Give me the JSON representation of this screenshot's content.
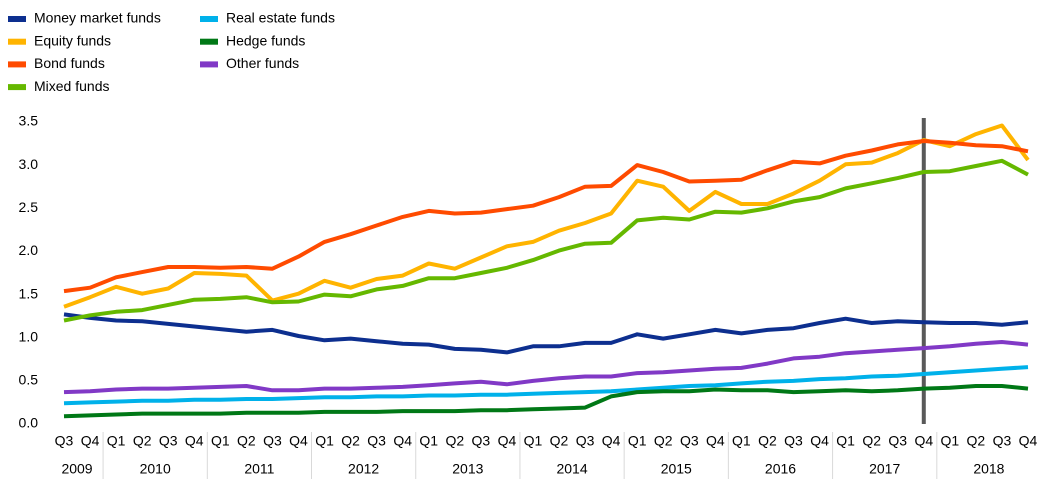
{
  "chart_data": {
    "type": "line",
    "categories": [
      "Q3",
      "Q4",
      "Q1",
      "Q2",
      "Q3",
      "Q4",
      "Q1",
      "Q2",
      "Q3",
      "Q4",
      "Q1",
      "Q2",
      "Q3",
      "Q4",
      "Q1",
      "Q2",
      "Q3",
      "Q4",
      "Q1",
      "Q2",
      "Q3",
      "Q4",
      "Q1",
      "Q2",
      "Q3",
      "Q4",
      "Q1",
      "Q2",
      "Q3",
      "Q4",
      "Q1",
      "Q2",
      "Q3",
      "Q4",
      "Q1",
      "Q2",
      "Q3",
      "Q4"
    ],
    "years": [
      "2009",
      "2010",
      "2011",
      "2012",
      "2013",
      "2014",
      "2015",
      "2016",
      "2017",
      "2018"
    ],
    "series": [
      {
        "name": "Money market funds",
        "color": "#0d2f8f",
        "values": [
          1.27,
          1.23,
          1.2,
          1.19,
          1.16,
          1.13,
          1.1,
          1.07,
          1.09,
          1.02,
          0.97,
          0.99,
          0.96,
          0.93,
          0.92,
          0.87,
          0.86,
          0.83,
          0.9,
          0.9,
          0.94,
          0.94,
          1.04,
          0.99,
          1.04,
          1.09,
          1.05,
          1.09,
          1.11,
          1.17,
          1.22,
          1.17,
          1.19,
          1.18,
          1.17,
          1.17,
          1.15,
          1.18
        ]
      },
      {
        "name": "Equity funds",
        "color": "#ffb400",
        "values": [
          1.36,
          1.47,
          1.59,
          1.51,
          1.57,
          1.75,
          1.74,
          1.72,
          1.43,
          1.51,
          1.66,
          1.58,
          1.68,
          1.72,
          1.86,
          1.8,
          1.93,
          2.06,
          2.11,
          2.24,
          2.33,
          2.44,
          2.82,
          2.75,
          2.47,
          2.69,
          2.55,
          2.55,
          2.67,
          2.82,
          3.01,
          3.03,
          3.14,
          3.29,
          3.22,
          3.36,
          3.46,
          3.06
        ]
      },
      {
        "name": "Bond funds",
        "color": "#ff4b00",
        "values": [
          1.54,
          1.58,
          1.7,
          1.76,
          1.82,
          1.82,
          1.81,
          1.82,
          1.8,
          1.94,
          2.11,
          2.2,
          2.3,
          2.4,
          2.47,
          2.44,
          2.45,
          2.49,
          2.53,
          2.63,
          2.75,
          2.76,
          3.0,
          2.92,
          2.81,
          2.82,
          2.83,
          2.94,
          3.04,
          3.02,
          3.11,
          3.17,
          3.24,
          3.28,
          3.26,
          3.23,
          3.22,
          3.16
        ]
      },
      {
        "name": "Mixed funds",
        "color": "#65b800",
        "values": [
          1.2,
          1.26,
          1.3,
          1.32,
          1.38,
          1.44,
          1.45,
          1.47,
          1.41,
          1.42,
          1.5,
          1.48,
          1.56,
          1.6,
          1.69,
          1.69,
          1.75,
          1.81,
          1.9,
          2.01,
          2.09,
          2.1,
          2.36,
          2.39,
          2.37,
          2.46,
          2.45,
          2.5,
          2.58,
          2.63,
          2.73,
          2.79,
          2.85,
          2.92,
          2.93,
          2.99,
          3.05,
          2.89
        ]
      },
      {
        "name": "Real estate funds",
        "color": "#00b1ea",
        "values": [
          0.24,
          0.25,
          0.26,
          0.27,
          0.27,
          0.28,
          0.28,
          0.29,
          0.29,
          0.3,
          0.31,
          0.31,
          0.32,
          0.32,
          0.33,
          0.33,
          0.34,
          0.34,
          0.35,
          0.36,
          0.37,
          0.38,
          0.4,
          0.42,
          0.44,
          0.45,
          0.47,
          0.49,
          0.5,
          0.52,
          0.53,
          0.55,
          0.56,
          0.58,
          0.6,
          0.62,
          0.64,
          0.66
        ]
      },
      {
        "name": "Hedge funds",
        "color": "#007816",
        "values": [
          0.09,
          0.1,
          0.11,
          0.12,
          0.12,
          0.12,
          0.12,
          0.13,
          0.13,
          0.13,
          0.14,
          0.14,
          0.14,
          0.15,
          0.15,
          0.15,
          0.16,
          0.16,
          0.17,
          0.18,
          0.19,
          0.32,
          0.37,
          0.38,
          0.38,
          0.4,
          0.39,
          0.39,
          0.37,
          0.38,
          0.39,
          0.38,
          0.39,
          0.41,
          0.42,
          0.44,
          0.44,
          0.41
        ]
      },
      {
        "name": "Other funds",
        "color": "#8139c6",
        "values": [
          0.37,
          0.38,
          0.4,
          0.41,
          0.41,
          0.42,
          0.43,
          0.44,
          0.39,
          0.39,
          0.41,
          0.41,
          0.42,
          0.43,
          0.45,
          0.47,
          0.49,
          0.46,
          0.5,
          0.53,
          0.55,
          0.55,
          0.59,
          0.6,
          0.62,
          0.64,
          0.65,
          0.7,
          0.76,
          0.78,
          0.82,
          0.84,
          0.86,
          0.88,
          0.9,
          0.93,
          0.95,
          0.92
        ]
      }
    ],
    "ylim": [
      0,
      3.5
    ],
    "yticks": [
      {
        "value": 0,
        "label": "0.0"
      },
      {
        "value": 0.5,
        "label": "0.5"
      },
      {
        "value": 1,
        "label": "1.0"
      },
      {
        "value": 1.5,
        "label": "1.5"
      },
      {
        "value": 2,
        "label": "2.0"
      },
      {
        "value": 2.5,
        "label": "2.5"
      },
      {
        "value": 3,
        "label": "3.0"
      },
      {
        "value": 3.5,
        "label": "3.5"
      }
    ],
    "vline_index": 33,
    "vline_color": "#595959"
  }
}
